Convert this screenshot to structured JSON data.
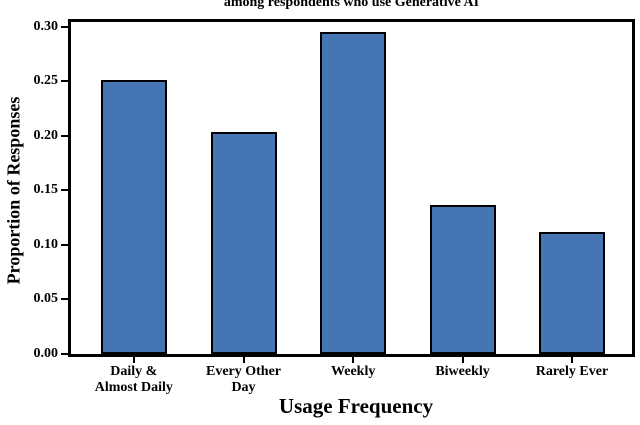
{
  "chart_data": {
    "type": "bar",
    "title": "among respondents who use Generative AI",
    "xlabel": "Usage Frequency",
    "ylabel": "Proportion of Responses",
    "categories": [
      "Daily &\nAlmost Daily",
      "Every Other\nDay",
      "Weekly",
      "Biweekly",
      "Rarely Ever"
    ],
    "values": [
      0.251,
      0.204,
      0.295,
      0.137,
      0.112
    ],
    "yticks": [
      0.0,
      0.05,
      0.1,
      0.15,
      0.2,
      0.25,
      0.3
    ],
    "ytick_labels": [
      "0.00",
      "0.05",
      "0.10",
      "0.15",
      "0.20",
      "0.25",
      "0.30"
    ],
    "ylim": [
      0,
      0.3045
    ],
    "grid": false,
    "legend": "none",
    "colors": {
      "bar_fill": "#4675b3",
      "bar_edge": "#000000",
      "axis": "#000000",
      "text": "#000000",
      "background": "#ffffff"
    }
  }
}
